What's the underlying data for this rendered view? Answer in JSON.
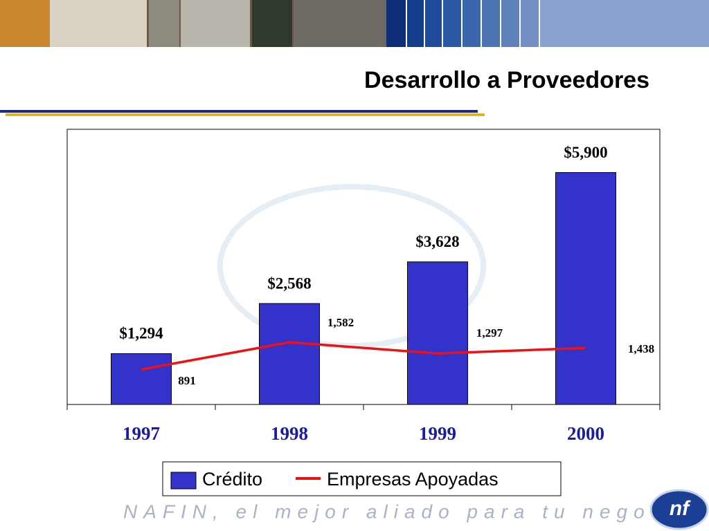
{
  "chart_data": {
    "type": "bar",
    "title": "Desarrollo a Proveedores",
    "categories": [
      "1997",
      "1998",
      "1999",
      "2000"
    ],
    "series": [
      {
        "name": "Crédito",
        "color": "#3333cc",
        "values": [
          1294,
          2568,
          3628,
          5900
        ],
        "value_labels": [
          "$1,294",
          "$2,568",
          "$3,628",
          "$5,900"
        ]
      },
      {
        "name": "Empresas Apoyadas",
        "type": "line",
        "color": "#ee1111",
        "values": [
          891,
          1582,
          1297,
          1438
        ],
        "value_labels": [
          "891",
          "1,582",
          "1,297",
          "1,438"
        ]
      }
    ],
    "ylim": [
      0,
      7000
    ]
  },
  "footer": "NAFIN, el mejor aliado para tu negocio"
}
